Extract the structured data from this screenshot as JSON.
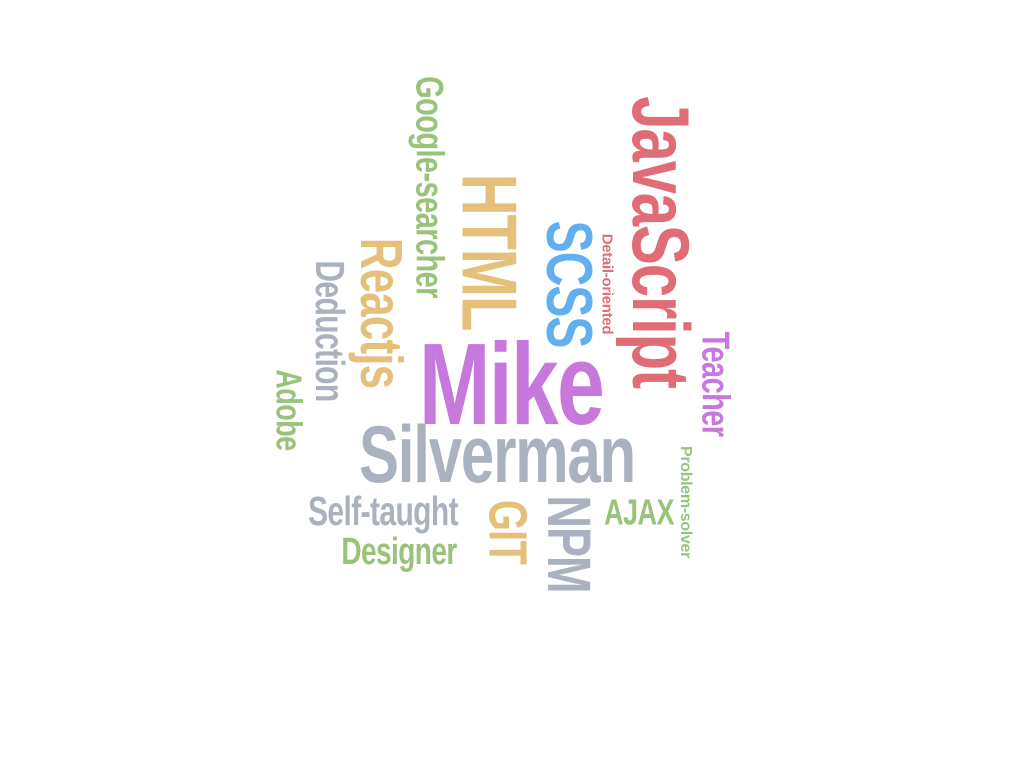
{
  "words": {
    "javascript": "JavaScript",
    "google_searcher": "Google-searcher",
    "html": "HTML",
    "scss": "SCSS",
    "detail_oriented": "Detail-oriented",
    "teacher": "Teacher",
    "reactjs": "Reactjs",
    "deduction": "Deduction",
    "adobe": "Adobe",
    "mike": "Mike",
    "silverman": "Silverman",
    "problem_solver": "Problem-solver",
    "self_taught": "Self-taught",
    "git": "GIT",
    "npm": "NPM",
    "ajax": "AJAX",
    "designer": "Designer"
  },
  "colors": {
    "red": "#e06c75",
    "purple": "#c678dd",
    "blue": "#61afef",
    "green": "#98c379",
    "gold": "#e5c07b",
    "gray": "#abb2bf"
  }
}
